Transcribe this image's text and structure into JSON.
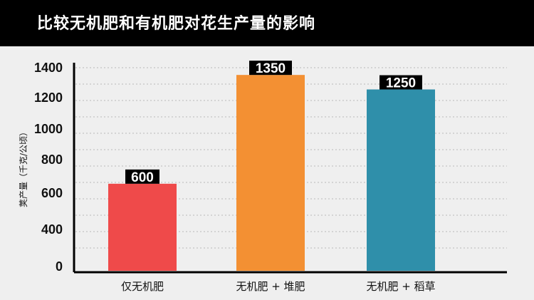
{
  "chart_data": {
    "type": "bar",
    "title": "比较无机肥和有机肥对花生产量的影响",
    "ylabel": "荚产量（千克/公顷）",
    "xlabel": "",
    "categories": [
      "仅无机肥",
      "无机肥 + 堆肥",
      "无机肥 + 稻草"
    ],
    "values": [
      600,
      1350,
      1250
    ],
    "data_labels": [
      "600",
      "1350",
      "1250"
    ],
    "colors": [
      "#ef4a4a",
      "#f39033",
      "#2f8faa"
    ],
    "ylim": [
      0,
      1400
    ],
    "yticks": [
      "0",
      "400",
      "600",
      "800",
      "1000",
      "1200",
      "1400"
    ],
    "ytick_values": [
      0,
      400,
      600,
      800,
      1000,
      1200,
      1400
    ],
    "grid": true
  }
}
